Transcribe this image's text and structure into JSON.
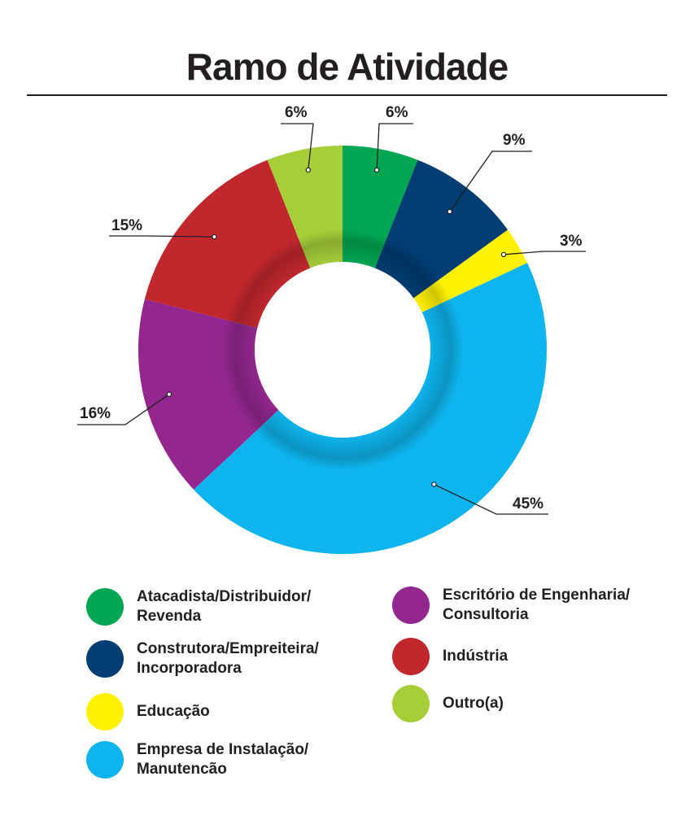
{
  "chart_data": {
    "type": "pie",
    "donut": true,
    "title": "Ramo de Atividade",
    "slices": [
      {
        "name": "Atacadista/Distribuidor/\nRevenda",
        "value": 6,
        "label": "6%",
        "color": "#00a651"
      },
      {
        "name": "Construtora/Empreiteira/\nIncorporadora",
        "value": 9,
        "label": "9%",
        "color": "#003d73"
      },
      {
        "name": "Educação",
        "value": 3,
        "label": "3%",
        "color": "#fff200"
      },
      {
        "name": "Empresa de Instalação/\nManutencão",
        "value": 45,
        "label": "45%",
        "color": "#0db4ed"
      },
      {
        "name": "Escritório de Engenharia/\nConsultoria",
        "value": 16,
        "label": "16%",
        "color": "#93278f"
      },
      {
        "name": "Indústria",
        "value": 15,
        "label": "15%",
        "color": "#c1272d"
      },
      {
        "name": "Outro(a)",
        "value": 6,
        "label": "6%",
        "color": "#a6ce39"
      }
    ],
    "legend_position": "bottom"
  }
}
